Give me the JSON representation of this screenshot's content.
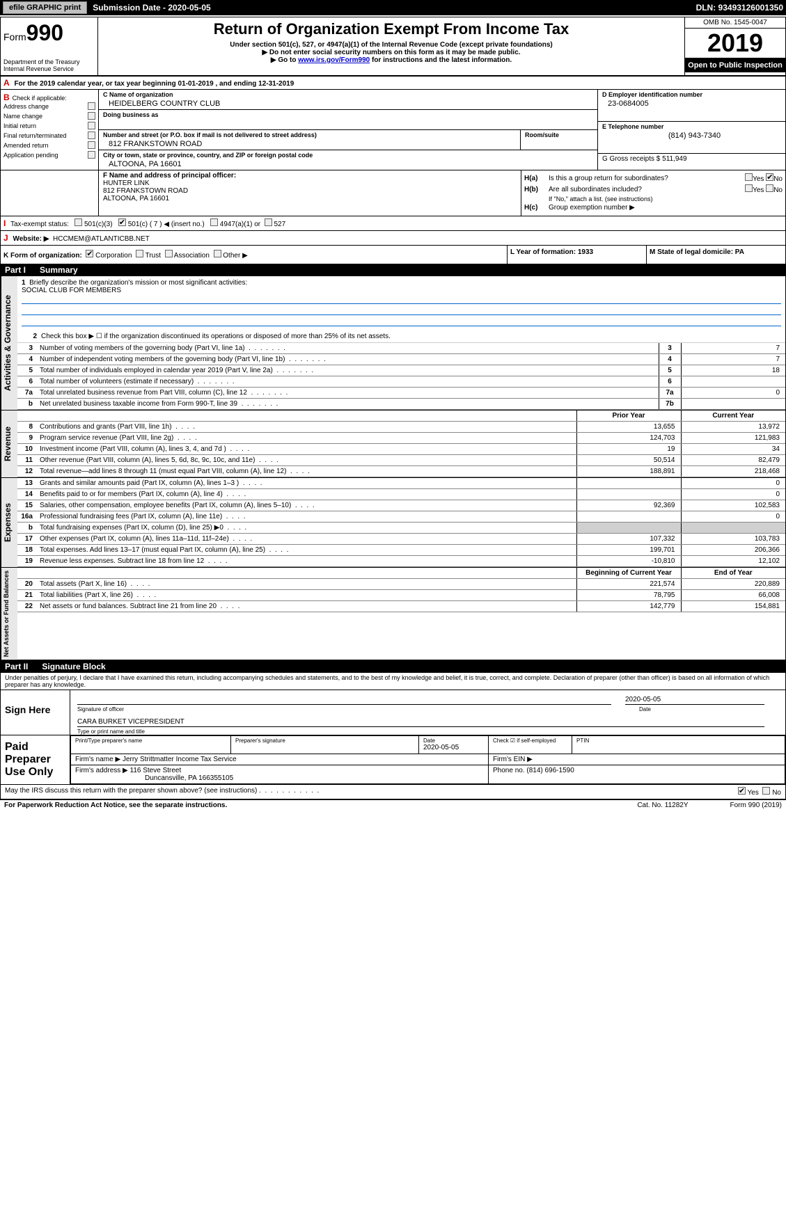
{
  "header_bar": {
    "efile": "efile GRAPHIC print",
    "submission_label": "Submission Date - 2020-05-05",
    "dln": "DLN: 93493126001350"
  },
  "title": {
    "form_prefix": "Form",
    "form_number": "990",
    "main": "Return of Organization Exempt From Income Tax",
    "sub1": "Under section 501(c), 527, or 4947(a)(1) of the Internal Revenue Code (except private foundations)",
    "sub2": "▶ Do not enter social security numbers on this form as it may be made public.",
    "sub3_prefix": "▶ Go to ",
    "sub3_link": "www.irs.gov/Form990",
    "sub3_suffix": " for instructions and the latest information.",
    "dept": "Department of the Treasury\nInternal Revenue Service",
    "omb": "OMB No. 1545-0047",
    "year": "2019",
    "open": "Open to Public Inspection"
  },
  "line_a": {
    "prefix": "A",
    "text": "For the 2019 calendar year, or tax year beginning 01-01-2019",
    "ending": ", and ending 12-31-2019"
  },
  "section_b": {
    "prefix": "B",
    "check_label": "Check if applicable:",
    "addr_change": "Address change",
    "name_change": "Name change",
    "initial": "Initial return",
    "final": "Final return/terminated",
    "amended": "Amended return",
    "pending": "Application pending"
  },
  "section_c": {
    "name_label": "C Name of organization",
    "name": "HEIDELBERG COUNTRY CLUB",
    "dba_label": "Doing business as",
    "street_label": "Number and street (or P.O. box if mail is not delivered to street address)",
    "street": "812 FRANKSTOWN ROAD",
    "room_label": "Room/suite",
    "city_label": "City or town, state or province, country, and ZIP or foreign postal code",
    "city": "ALTOONA, PA  16601"
  },
  "section_d": {
    "label": "D Employer identification number",
    "ein": "23-0684005"
  },
  "section_e": {
    "label": "E Telephone number",
    "phone": "(814) 943-7340"
  },
  "section_g": {
    "label": "G Gross receipts $ 511,949"
  },
  "section_f": {
    "label": "F Name and address of principal officer:",
    "name": "HUNTER LINK",
    "addr1": "812 FRANKSTOWN ROAD",
    "addr2": "ALTOONA, PA  16601"
  },
  "section_h": {
    "ha": "H(a)",
    "ha_text": "Is this a group return for subordinates?",
    "hb": "H(b)",
    "hb_text": "Are all subordinates included?",
    "hb_note": "If \"No,\" attach a list. (see instructions)",
    "hc": "H(c)",
    "hc_text": "Group exemption number ▶",
    "yes": "Yes",
    "no": "No"
  },
  "tax_status": {
    "prefix": "I",
    "label": "Tax-exempt status:",
    "c3": "501(c)(3)",
    "c": "501(c) ( 7 ) ◀ (insert no.)",
    "a1": "4947(a)(1) or",
    "s527": "527"
  },
  "website": {
    "prefix": "J",
    "label": "Website: ▶",
    "value": "HCCMEM@ATLANTICBB.NET"
  },
  "form_org": {
    "prefix": "K",
    "label": "Form of organization:",
    "corp": "Corporation",
    "trust": "Trust",
    "assoc": "Association",
    "other": "Other ▶"
  },
  "section_l": {
    "label": "L Year of formation: 1933"
  },
  "section_m": {
    "label": "M State of legal domicile: PA"
  },
  "part1": {
    "label": "Part I",
    "title": "Summary"
  },
  "governance": {
    "label": "Activities & Governance",
    "line1_label": "1",
    "line1_text": "Briefly describe the organization's mission or most significant activities:",
    "mission": "SOCIAL CLUB FOR MEMBERS",
    "line2_label": "2",
    "line2_text": "Check this box ▶ ☐  if the organization discontinued its operations or disposed of more than 25% of its net assets.",
    "rows": [
      {
        "num": "3",
        "desc": "Number of voting members of the governing body (Part VI, line 1a)",
        "box": "3",
        "val": "7"
      },
      {
        "num": "4",
        "desc": "Number of independent voting members of the governing body (Part VI, line 1b)",
        "box": "4",
        "val": "7"
      },
      {
        "num": "5",
        "desc": "Total number of individuals employed in calendar year 2019 (Part V, line 2a)",
        "box": "5",
        "val": "18"
      },
      {
        "num": "6",
        "desc": "Total number of volunteers (estimate if necessary)",
        "box": "6",
        "val": ""
      },
      {
        "num": "7a",
        "desc": "Total unrelated business revenue from Part VIII, column (C), line 12",
        "box": "7a",
        "val": "0"
      },
      {
        "num": "b",
        "desc": "Net unrelated business taxable income from Form 990-T, line 39",
        "box": "7b",
        "val": ""
      }
    ]
  },
  "two_col_header": {
    "prior": "Prior Year",
    "current": "Current Year"
  },
  "revenue": {
    "label": "Revenue",
    "rows": [
      {
        "num": "8",
        "desc": "Contributions and grants (Part VIII, line 1h)",
        "prior": "13,655",
        "current": "13,972"
      },
      {
        "num": "9",
        "desc": "Program service revenue (Part VIII, line 2g)",
        "prior": "124,703",
        "current": "121,983"
      },
      {
        "num": "10",
        "desc": "Investment income (Part VIII, column (A), lines 3, 4, and 7d )",
        "prior": "19",
        "current": "34"
      },
      {
        "num": "11",
        "desc": "Other revenue (Part VIII, column (A), lines 5, 6d, 8c, 9c, 10c, and 11e)",
        "prior": "50,514",
        "current": "82,479"
      },
      {
        "num": "12",
        "desc": "Total revenue—add lines 8 through 11 (must equal Part VIII, column (A), line 12)",
        "prior": "188,891",
        "current": "218,468"
      }
    ]
  },
  "expenses": {
    "label": "Expenses",
    "rows": [
      {
        "num": "13",
        "desc": "Grants and similar amounts paid (Part IX, column (A), lines 1–3 )",
        "prior": "",
        "current": "0"
      },
      {
        "num": "14",
        "desc": "Benefits paid to or for members (Part IX, column (A), line 4)",
        "prior": "",
        "current": "0"
      },
      {
        "num": "15",
        "desc": "Salaries, other compensation, employee benefits (Part IX, column (A), lines 5–10)",
        "prior": "92,369",
        "current": "102,583"
      },
      {
        "num": "16a",
        "desc": "Professional fundraising fees (Part IX, column (A), line 11e)",
        "prior": "",
        "current": "0"
      },
      {
        "num": "b",
        "desc": "Total fundraising expenses (Part IX, column (D), line 25) ▶0",
        "prior": "shaded",
        "current": "shaded"
      },
      {
        "num": "17",
        "desc": "Other expenses (Part IX, column (A), lines 11a–11d, 11f–24e)",
        "prior": "107,332",
        "current": "103,783"
      },
      {
        "num": "18",
        "desc": "Total expenses. Add lines 13–17 (must equal Part IX, column (A), line 25)",
        "prior": "199,701",
        "current": "206,366"
      },
      {
        "num": "19",
        "desc": "Revenue less expenses. Subtract line 18 from line 12",
        "prior": "-10,810",
        "current": "12,102"
      }
    ]
  },
  "net_header": {
    "begin": "Beginning of Current Year",
    "end": "End of Year"
  },
  "net_assets": {
    "label": "Net Assets or Fund Balances",
    "rows": [
      {
        "num": "20",
        "desc": "Total assets (Part X, line 16)",
        "prior": "221,574",
        "current": "220,889"
      },
      {
        "num": "21",
        "desc": "Total liabilities (Part X, line 26)",
        "prior": "78,795",
        "current": "66,008"
      },
      {
        "num": "22",
        "desc": "Net assets or fund balances. Subtract line 21 from line 20",
        "prior": "142,779",
        "current": "154,881"
      }
    ]
  },
  "part2": {
    "label": "Part II",
    "title": "Signature Block"
  },
  "perjury": "Under penalties of perjury, I declare that I have examined this return, including accompanying schedules and statements, and to the best of my knowledge and belief, it is true, correct, and complete. Declaration of preparer (other than officer) is based on all information of which preparer has any knowledge.",
  "sign": {
    "label": "Sign Here",
    "date": "2020-05-05",
    "sig_of_officer": "Signature of officer",
    "date_label": "Date",
    "name": "CARA BURKET  VICEPRESIDENT",
    "name_caption": "Type or print name and title"
  },
  "prep": {
    "label": "Paid Preparer Use Only",
    "print_label": "Print/Type preparer's name",
    "sig_label": "Preparer's signature",
    "date_label": "Date",
    "date": "2020-05-05",
    "check_label": "Check ☑ if self-employed",
    "ptin_label": "PTIN",
    "firm_name_label": "Firm's name   ▶",
    "firm_name": "Jerry Strittmatter Income Tax Service",
    "firm_ein_label": "Firm's EIN ▶",
    "firm_addr_label": "Firm's address ▶",
    "firm_addr": "116 Steve Street",
    "firm_city": "Duncansville, PA  166355105",
    "phone_label": "Phone no. (814) 696-1590"
  },
  "discuss": {
    "text": "May the IRS discuss this return with the preparer shown above? (see instructions)",
    "yes": "Yes",
    "no": "No"
  },
  "footer": {
    "notice": "For Paperwork Reduction Act Notice, see the separate instructions.",
    "cat": "Cat. No. 11282Y",
    "form": "Form 990 (2019)"
  },
  "colors": {
    "black": "#000000",
    "white": "#ffffff",
    "red": "#cc0000",
    "blue": "#0000cc",
    "blue_line": "#0066cc",
    "shade": "#d0d0d0",
    "side_shade": "#e8e8e8"
  }
}
